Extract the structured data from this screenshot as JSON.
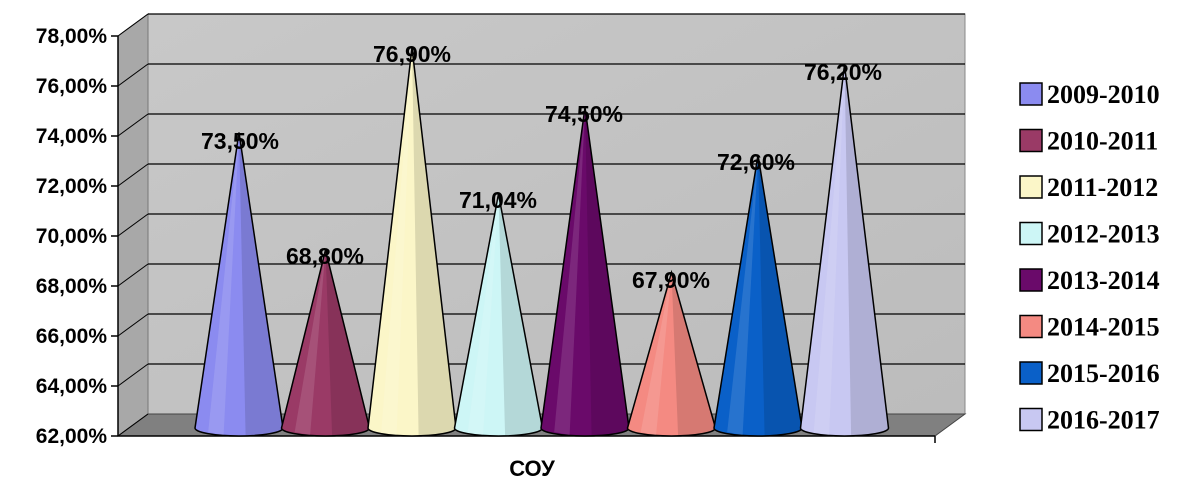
{
  "chart_data": {
    "type": "bar",
    "shape": "cone",
    "categories": [
      "СОУ"
    ],
    "series": [
      {
        "name": "2009-2010",
        "value": 73.5,
        "label": "73,50%",
        "color": "#8b8bf0"
      },
      {
        "name": "2010-2011",
        "value": 68.8,
        "label": "68,80%",
        "color": "#9a3a66"
      },
      {
        "name": "2011-2012",
        "value": 76.9,
        "label": "76,90%",
        "color": "#fbf6c8"
      },
      {
        "name": "2012-2013",
        "value": 71.04,
        "label": "71,04%",
        "color": "#cdf6f6"
      },
      {
        "name": "2013-2014",
        "value": 74.5,
        "label": "74,50%",
        "color": "#6a0a6a"
      },
      {
        "name": "2014-2015",
        "value": 67.9,
        "label": "67,90%",
        "color": "#f48a82"
      },
      {
        "name": "2015-2016",
        "value": 72.6,
        "label": "72,60%",
        "color": "#0a60c8"
      },
      {
        "name": "2016-2017",
        "value": 76.2,
        "label": "76,20%",
        "color": "#c8c8f2"
      }
    ],
    "yticks": [
      "62,00%",
      "64,00%",
      "66,00%",
      "68,00%",
      "70,00%",
      "72,00%",
      "74,00%",
      "76,00%",
      "78,00%"
    ],
    "ylim": [
      62,
      78
    ],
    "grid": true,
    "legend_position": "right",
    "colors": {
      "wall": "#c0c0c0",
      "floor": "#808080",
      "grid": "#000000"
    }
  }
}
